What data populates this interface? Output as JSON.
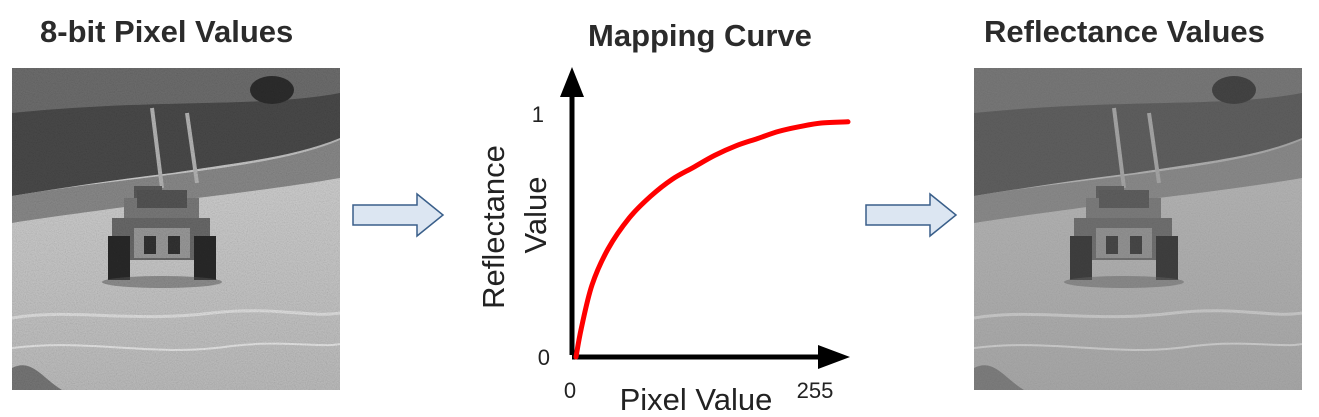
{
  "titles": {
    "left": "8-bit Pixel Values",
    "middle": "Mapping Curve",
    "right": "Reflectance Values"
  },
  "left_image": {
    "description_icon": "tank-photo-grayscale"
  },
  "right_image": {
    "description_icon": "tank-photo-grayscale-reflectance"
  },
  "chart_data": {
    "type": "line",
    "title": "Mapping Curve",
    "xlabel": "Pixel Value",
    "ylabel": "Reflectance Value",
    "xlim": [
      0,
      255
    ],
    "ylim": [
      0,
      1
    ],
    "x_ticks": [
      "0",
      "255"
    ],
    "y_ticks": [
      "0",
      "1"
    ],
    "grid": false,
    "series": [
      {
        "color": "#ff0000",
        "x": [
          0,
          5,
          15,
          30,
          50,
          70,
          90,
          110,
          130,
          150,
          170,
          190,
          210,
          230,
          255
        ],
        "y": [
          0,
          0.12,
          0.3,
          0.45,
          0.58,
          0.67,
          0.74,
          0.79,
          0.84,
          0.88,
          0.91,
          0.94,
          0.96,
          0.975,
          0.98
        ]
      }
    ]
  },
  "colors": {
    "curve": "#ff0000",
    "flow_arrow_fill": "#dce6f2",
    "flow_arrow_stroke": "#3a5f8a"
  }
}
